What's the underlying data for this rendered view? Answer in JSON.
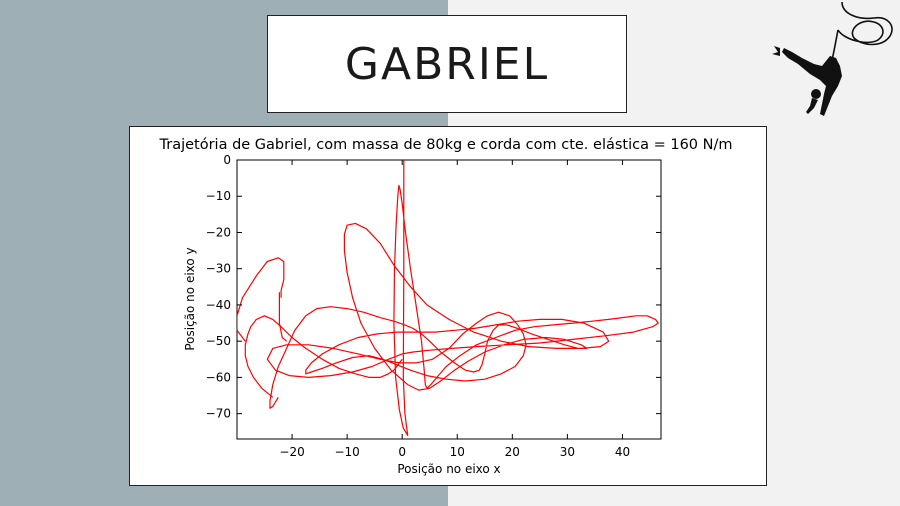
{
  "slide": {
    "title": "GABRIEL",
    "colors": {
      "left_panel": "#9eafb5",
      "right_panel": "#f2f2f2",
      "line": "#ff0000"
    },
    "logo_icon": "bungee-jumper-icon"
  },
  "chart_data": {
    "type": "line",
    "title": "Trajetória de Gabriel, com massa de 80kg e corda com cte. elástica = 160 N/m",
    "xlabel": "Posição no eixo x",
    "ylabel": "Posição no eixo y",
    "xlim": [
      -30,
      47
    ],
    "ylim": [
      -77,
      0
    ],
    "xticks": [
      -20,
      -10,
      0,
      10,
      20,
      30,
      40
    ],
    "yticks": [
      0,
      -10,
      -20,
      -30,
      -40,
      -50,
      -60,
      -70
    ],
    "grid": false,
    "series": [
      {
        "color": "#ff0000",
        "x": [
          0.3,
          0.3,
          0.2,
          0.5,
          1.0,
          0.2,
          -0.5,
          -1.2,
          -1.5,
          -1.4,
          -1.1,
          -0.8,
          -0.6,
          -0.4,
          0.0,
          0.6,
          1.5,
          2.5,
          3.5,
          4.0,
          4.2,
          4.5,
          5.2,
          6.3,
          8.0,
          10.5,
          13.5,
          17.0,
          20.5,
          24.0,
          27.5,
          31.0,
          34.5,
          37.5,
          40.0,
          42.5,
          44.5,
          46.0,
          46.5,
          45.5,
          42.0,
          37.0,
          31.0,
          25.0,
          19.0,
          13.5,
          9.0,
          5.0,
          2.0,
          0.0,
          -2.5,
          -5.5,
          -9.0,
          -13.0,
          -17.0,
          -20.5,
          -23.0,
          -24.5,
          -23.5,
          -21.0,
          -17.0,
          -12.5,
          -8.0,
          -4.0,
          -0.5,
          2.5,
          5.5,
          8.5,
          11.0,
          13.5,
          15.5,
          17.5,
          19.5,
          21.0,
          22.0,
          22.5,
          22.0,
          20.5,
          18.0,
          15.0,
          11.5,
          8.0,
          4.5,
          1.5,
          -1.0,
          -3.5,
          -6.0,
          -9.0,
          -12.0,
          -14.5,
          -16.5,
          -17.5,
          -17.5,
          -16.5,
          -14.5,
          -11.5,
          -8.0,
          -4.5,
          -1.0,
          2.5,
          6.0,
          9.5,
          13.0,
          17.0,
          21.0,
          25.0,
          29.0,
          33.0,
          36.5,
          37.5,
          36.0,
          32.5,
          28.0,
          23.0,
          18.0,
          13.0,
          8.5,
          4.5,
          1.5,
          -1.5,
          -4.0,
          -6.5,
          -8.5,
          -10.0,
          -10.5,
          -10.5,
          -10.0,
          -9.0,
          -7.5,
          -5.0,
          -2.0,
          1.0,
          3.0,
          5.0,
          7.0,
          9.5,
          12.0,
          15.0,
          18.5,
          22.0,
          26.0,
          29.5,
          32.5,
          33.5,
          32.0,
          29.5,
          26.5,
          23.5,
          21.0,
          19.0,
          17.5,
          16.5,
          15.5,
          15.0,
          14.5,
          14.0,
          13.0,
          11.5,
          9.5,
          7.0,
          5.0,
          3.5,
          2.0,
          0.5,
          -1.5,
          -4.0,
          -7.0,
          -10.0,
          -13.0,
          -15.5,
          -17.5,
          -19.5,
          -21.0,
          -22.5,
          -23.5,
          -24.0,
          -24.0,
          -23.5,
          -22.5
        ],
        "y": [
          0,
          -30,
          -60,
          -70,
          -76,
          -74,
          -69,
          -60,
          -45,
          -30,
          -18,
          -10,
          -7,
          -8,
          -12,
          -20,
          -30,
          -40,
          -50,
          -58,
          -62,
          -63,
          -62,
          -60,
          -57,
          -54,
          -51,
          -49,
          -47,
          -46,
          -45.5,
          -45,
          -44.5,
          -44,
          -43.5,
          -43,
          -43,
          -44,
          -45,
          -46,
          -47.5,
          -48.5,
          -49.5,
          -50.5,
          -51,
          -51.5,
          -52,
          -52.5,
          -53,
          -53.5,
          -55,
          -57,
          -58.5,
          -59.5,
          -60,
          -59.5,
          -58,
          -55,
          -52,
          -51,
          -51,
          -52,
          -53.5,
          -55,
          -56,
          -56,
          -55,
          -52,
          -48,
          -45,
          -43,
          -42,
          -43,
          -45.5,
          -48,
          -51,
          -54,
          -57,
          -59,
          -60.5,
          -61,
          -60.5,
          -59.5,
          -58,
          -56.5,
          -55,
          -54,
          -54.5,
          -56,
          -57.5,
          -58.5,
          -59,
          -58,
          -56,
          -53.5,
          -51,
          -49,
          -48,
          -47.5,
          -47.5,
          -47.5,
          -47,
          -46.5,
          -45.5,
          -44.5,
          -44,
          -44,
          -45,
          -47.5,
          -50,
          -51.5,
          -52,
          -52,
          -51.5,
          -50,
          -47.5,
          -44,
          -40,
          -35,
          -29,
          -23,
          -19,
          -17.5,
          -18,
          -20.5,
          -25,
          -31,
          -38,
          -45,
          -52,
          -58,
          -62,
          -63.5,
          -63,
          -61,
          -58,
          -55.5,
          -53,
          -51,
          -49.5,
          -49,
          -49.5,
          -51,
          -52,
          -52,
          -51,
          -49.5,
          -48,
          -46.5,
          -45.5,
          -45.5,
          -47,
          -50,
          -53.5,
          -56.5,
          -58,
          -58.5,
          -58,
          -56,
          -53,
          -50,
          -48,
          -46.5,
          -45.5,
          -44.5,
          -43.5,
          -42,
          -41,
          -40.5,
          -41,
          -43,
          -47,
          -52,
          -57,
          -62,
          -66.5,
          -68.5,
          -68,
          -65.5
        ]
      },
      {
        "color": "#ff0000",
        "x": [
          -23.5,
          -25.5,
          -27.0,
          -28.0,
          -28.5,
          -28.5,
          -28.0,
          -27.5,
          -26.5,
          -25.0,
          -23.5,
          -22.0,
          -20.0,
          -17.5,
          -14.5,
          -11.5,
          -8.5,
          -6.0,
          -4.0,
          -2.5,
          -1.5,
          -1.0,
          -0.5,
          0.0,
          0.0,
          0.0
        ],
        "y": [
          -65.5,
          -63,
          -60,
          -57,
          -54,
          -51,
          -48,
          -46,
          -44,
          -43,
          -44,
          -46,
          -49,
          -52,
          -55,
          -57.5,
          -59,
          -60,
          -60,
          -59,
          -58,
          -57,
          -56,
          -55,
          -55,
          -55
        ]
      },
      {
        "color": "#ff0000",
        "x": [
          -28.5,
          -30.0,
          -30.0,
          -29.0,
          -26.5,
          -24.5,
          -22.5,
          -21.5,
          -21.5,
          -22.0,
          -22.0
        ],
        "y": [
          -50,
          -47,
          -43,
          -38,
          -32,
          -28,
          -27,
          -28,
          -33,
          -36,
          -38
        ]
      },
      {
        "color": "#ff0000",
        "x": [
          -22.3,
          -22.3,
          -22.3,
          -21.8,
          -21.0
        ],
        "y": [
          -36.5,
          -40,
          -45,
          -49,
          -50
        ]
      }
    ]
  }
}
